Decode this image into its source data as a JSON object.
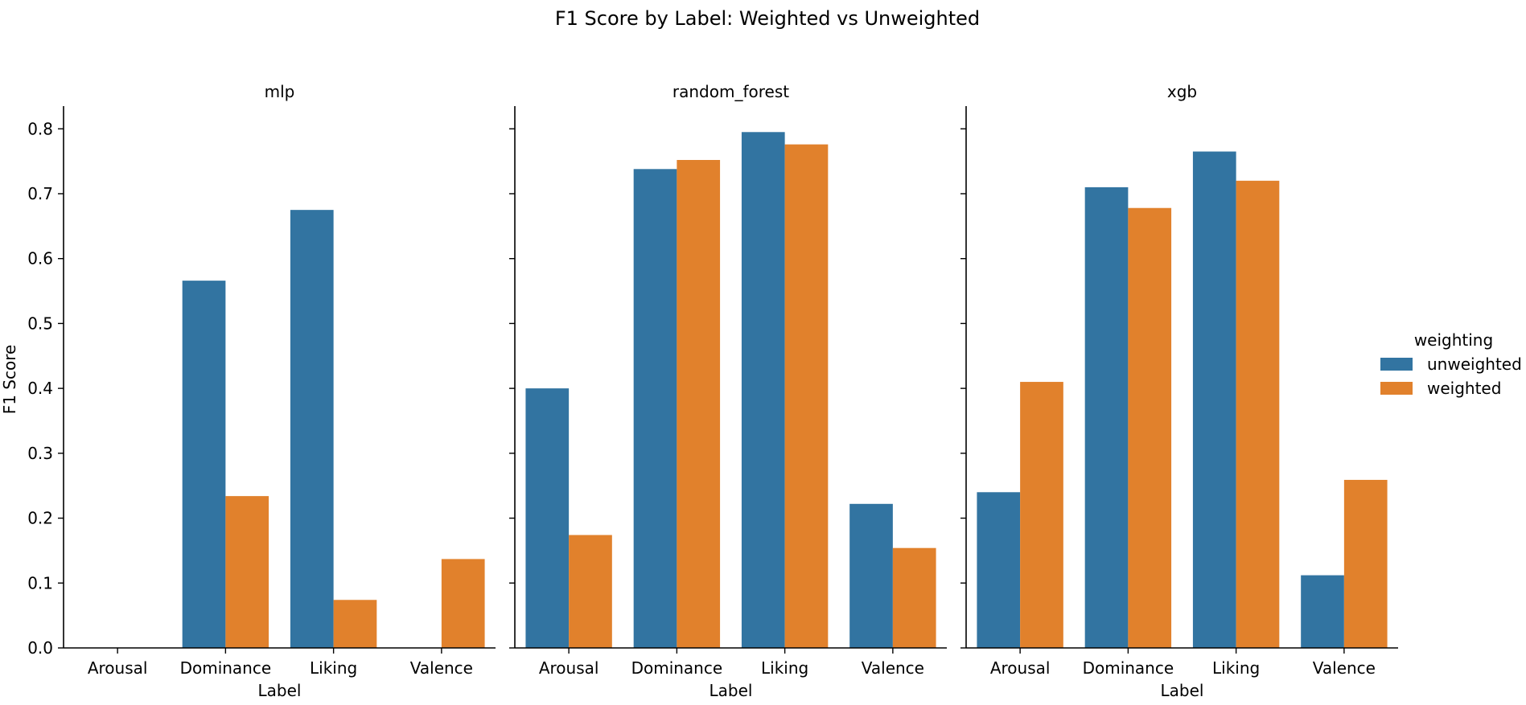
{
  "chart_data": {
    "type": "bar",
    "title": "F1 Score by Label: Weighted vs Unweighted",
    "ylabel": "F1 Score",
    "xlabel": "Label",
    "ylim": [
      0,
      0.835
    ],
    "yticks": [
      "0.0",
      "0.1",
      "0.2",
      "0.3",
      "0.4",
      "0.5",
      "0.6",
      "0.7",
      "0.8"
    ],
    "categories": [
      "Arousal",
      "Dominance",
      "Liking",
      "Valence"
    ],
    "legend": {
      "title": "weighting",
      "placement": "right",
      "entries": [
        {
          "name": "unweighted",
          "color": "#3274a1"
        },
        {
          "name": "weighted",
          "color": "#e1812c"
        }
      ]
    },
    "panels": [
      {
        "title": "mlp",
        "series": [
          {
            "name": "unweighted",
            "color": "#3274a1",
            "values": [
              0.0,
              0.566,
              0.675,
              0.0
            ]
          },
          {
            "name": "weighted",
            "color": "#e1812c",
            "values": [
              0.0,
              0.234,
              0.074,
              0.137
            ]
          }
        ]
      },
      {
        "title": "random_forest",
        "series": [
          {
            "name": "unweighted",
            "color": "#3274a1",
            "values": [
              0.4,
              0.738,
              0.795,
              0.222
            ]
          },
          {
            "name": "weighted",
            "color": "#e1812c",
            "values": [
              0.174,
              0.752,
              0.776,
              0.154
            ]
          }
        ]
      },
      {
        "title": "xgb",
        "series": [
          {
            "name": "unweighted",
            "color": "#3274a1",
            "values": [
              0.24,
              0.71,
              0.765,
              0.112
            ]
          },
          {
            "name": "weighted",
            "color": "#e1812c",
            "values": [
              0.41,
              0.678,
              0.72,
              0.259
            ]
          }
        ]
      }
    ]
  }
}
